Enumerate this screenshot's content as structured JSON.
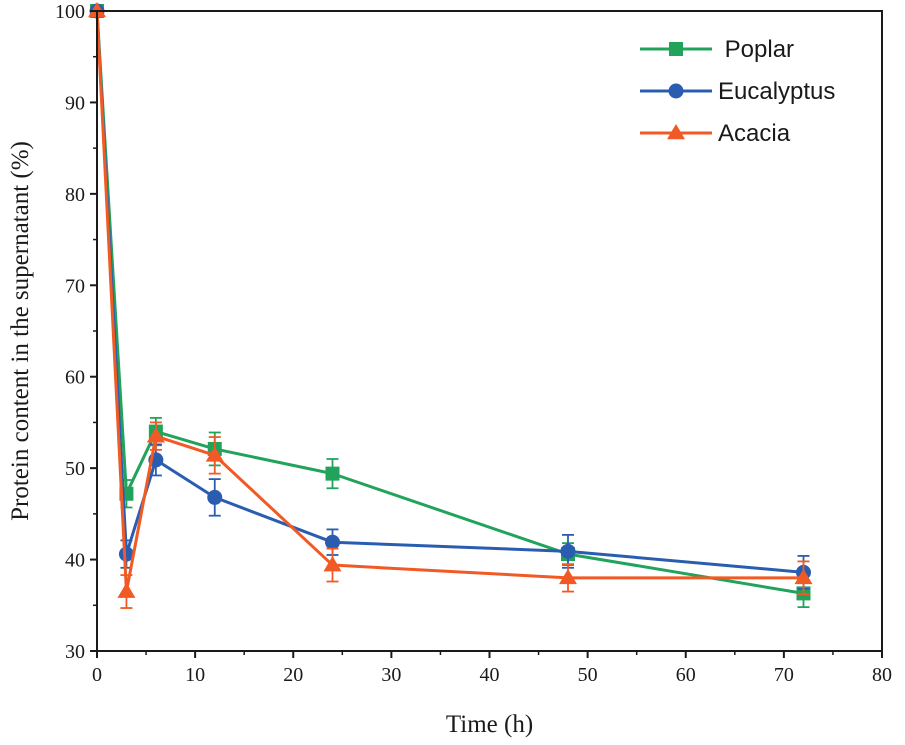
{
  "chart_data": {
    "type": "line",
    "title": "",
    "xlabel": "Time (h)",
    "ylabel": "Protein content in the supernatant (%)",
    "xlim": [
      0,
      80
    ],
    "ylim": [
      30,
      100
    ],
    "x_ticks": [
      0,
      10,
      20,
      30,
      40,
      50,
      60,
      70,
      80
    ],
    "y_ticks": [
      30,
      40,
      50,
      60,
      70,
      80,
      90,
      100
    ],
    "grid": false,
    "legend_position": "top-right",
    "x": [
      0,
      3,
      6,
      12,
      24,
      48,
      72
    ],
    "series": [
      {
        "name": " Poplar",
        "color": "#22A35B",
        "marker": "square",
        "values": [
          100,
          47.2,
          54.0,
          52.1,
          49.4,
          40.6,
          36.3
        ],
        "errors": [
          0,
          1.5,
          1.5,
          1.8,
          1.6,
          1.2,
          1.5
        ]
      },
      {
        "name": "Eucalyptus",
        "color": "#2A5DB0",
        "marker": "circle",
        "values": [
          100,
          40.6,
          50.9,
          46.8,
          41.9,
          40.9,
          38.6
        ],
        "errors": [
          0,
          1.5,
          1.7,
          2.0,
          1.4,
          1.8,
          1.8
        ]
      },
      {
        "name": "Acacia",
        "color": "#F15A24",
        "marker": "triangle",
        "values": [
          100,
          36.5,
          53.5,
          51.4,
          39.4,
          38.0,
          38.0
        ],
        "errors": [
          0,
          1.8,
          1.5,
          2.0,
          1.8,
          1.5,
          1.8
        ]
      }
    ]
  }
}
